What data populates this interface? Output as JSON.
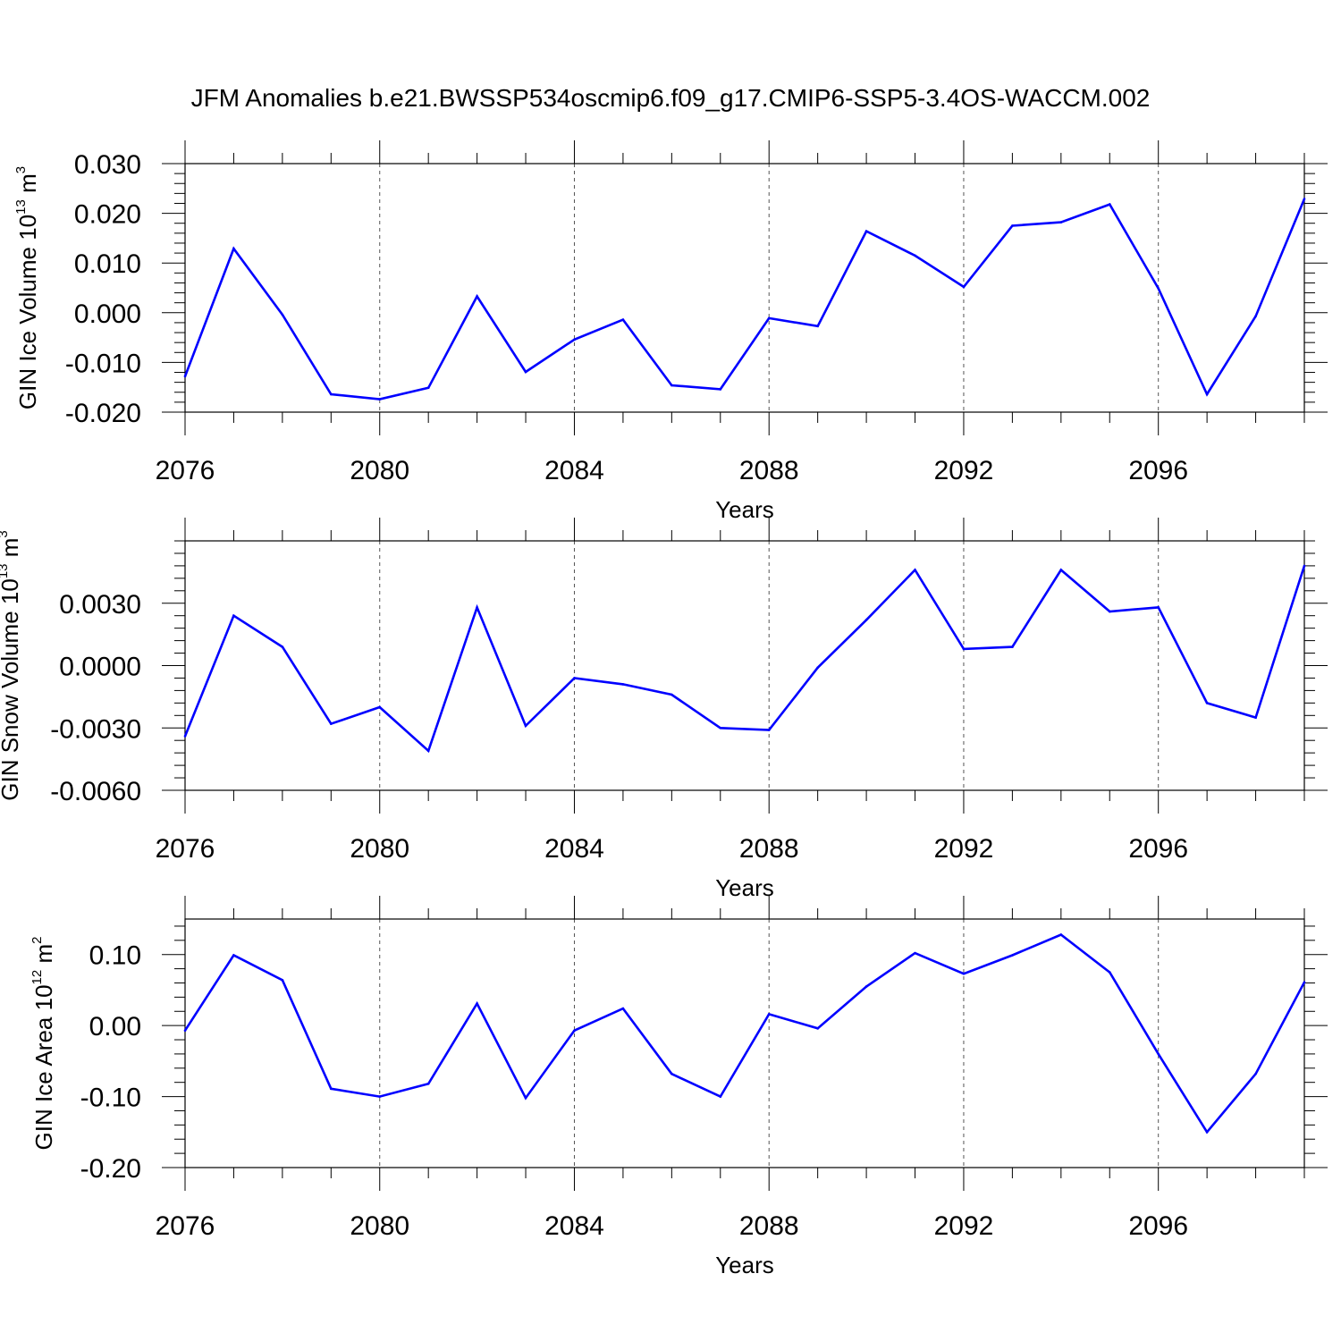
{
  "title": "JFM Anomalies b.e21.BWSSP534oscmip6.f09_g17.CMIP6-SSP5-3.4OS-WACCM.002",
  "colors": {
    "line": "#0000ff",
    "axis": "#000000",
    "grid": "#555555",
    "background": "#ffffff"
  },
  "chart_data": [
    {
      "type": "line",
      "xlabel": "Years",
      "ylabel": {
        "main": "GIN Ice Volume 10",
        "exp": "13",
        "unit": " m",
        "unit_exp": "3"
      },
      "xlim": [
        2076,
        2099
      ],
      "ylim": [
        -0.02,
        0.03
      ],
      "xticks": [
        "2076",
        "2080",
        "2084",
        "2088",
        "2092",
        "2096"
      ],
      "yticks": [
        {
          "value": -0.02,
          "label": "-0.020"
        },
        {
          "value": -0.01,
          "label": "-0.010"
        },
        {
          "value": 0.0,
          "label": "0.000"
        },
        {
          "value": 0.01,
          "label": "0.010"
        },
        {
          "value": 0.02,
          "label": "0.020"
        },
        {
          "value": 0.03,
          "label": "0.030"
        }
      ],
      "x": [
        2076,
        2077,
        2078,
        2079,
        2080,
        2081,
        2082,
        2083,
        2084,
        2085,
        2086,
        2087,
        2088,
        2089,
        2090,
        2091,
        2092,
        2093,
        2094,
        2095,
        2096,
        2097,
        2098,
        2099
      ],
      "values": [
        -0.0128,
        0.0129,
        -0.0004,
        -0.0164,
        -0.0174,
        -0.0151,
        0.0033,
        -0.0119,
        -0.0054,
        -0.0014,
        -0.0146,
        -0.0154,
        -0.0011,
        -0.0027,
        0.0164,
        0.0115,
        0.0052,
        0.0175,
        0.0182,
        0.0218,
        0.0049,
        -0.0164,
        -0.0007,
        0.0229
      ],
      "grid": "dashed vertical at major x ticks"
    },
    {
      "type": "line",
      "xlabel": "Years",
      "ylabel": {
        "main": "GIN Snow Volume 10",
        "exp": "13",
        "unit": " m",
        "unit_exp": "3"
      },
      "xlim": [
        2076,
        2099
      ],
      "ylim": [
        -0.006,
        0.006
      ],
      "xticks": [
        "2076",
        "2080",
        "2084",
        "2088",
        "2092",
        "2096"
      ],
      "yticks": [
        {
          "value": -0.006,
          "label": "-0.0060"
        },
        {
          "value": -0.003,
          "label": "-0.0030"
        },
        {
          "value": 0.0,
          "label": "0.0000"
        },
        {
          "value": 0.003,
          "label": "0.0030"
        }
      ],
      "x": [
        2076,
        2077,
        2078,
        2079,
        2080,
        2081,
        2082,
        2083,
        2084,
        2085,
        2086,
        2087,
        2088,
        2089,
        2090,
        2091,
        2092,
        2093,
        2094,
        2095,
        2096,
        2097,
        2098,
        2099
      ],
      "values": [
        -0.0034,
        0.0024,
        0.0009,
        -0.0028,
        -0.002,
        -0.0041,
        0.0028,
        -0.0029,
        -0.0006,
        -0.0009,
        -0.0014,
        -0.003,
        -0.0031,
        -0.0001,
        0.0022,
        0.0046,
        0.0008,
        0.0009,
        0.0046,
        0.0026,
        0.0028,
        -0.0018,
        -0.0025,
        0.0048
      ],
      "grid": "dashed vertical at major x ticks"
    },
    {
      "type": "line",
      "xlabel": "Years",
      "ylabel": {
        "main": "GIN Ice Area 10",
        "exp": "12",
        "unit": " m",
        "unit_exp": "2"
      },
      "xlim": [
        2076,
        2099
      ],
      "ylim": [
        -0.2,
        0.15
      ],
      "xticks": [
        "2076",
        "2080",
        "2084",
        "2088",
        "2092",
        "2096"
      ],
      "yticks": [
        {
          "value": -0.2,
          "label": "-0.20"
        },
        {
          "value": -0.1,
          "label": "-0.10"
        },
        {
          "value": 0.0,
          "label": "0.00"
        },
        {
          "value": 0.1,
          "label": "0.10"
        }
      ],
      "x": [
        2076,
        2077,
        2078,
        2079,
        2080,
        2081,
        2082,
        2083,
        2084,
        2085,
        2086,
        2087,
        2088,
        2089,
        2090,
        2091,
        2092,
        2093,
        2094,
        2095,
        2096,
        2097,
        2098,
        2099
      ],
      "values": [
        -0.007,
        0.099,
        0.064,
        -0.089,
        -0.1,
        -0.082,
        0.031,
        -0.102,
        -0.007,
        0.024,
        -0.068,
        -0.1,
        0.016,
        -0.004,
        0.055,
        0.102,
        0.073,
        0.099,
        0.128,
        0.075,
        -0.04,
        -0.15,
        -0.068,
        0.061
      ],
      "grid": "dashed vertical at major x ticks"
    }
  ]
}
